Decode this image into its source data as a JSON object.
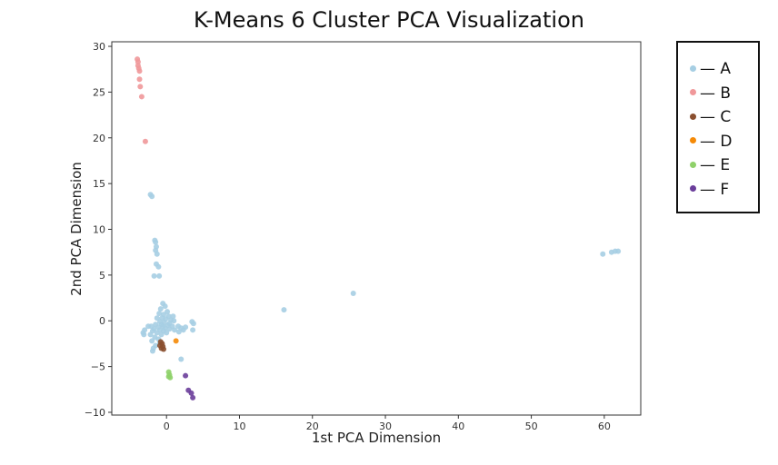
{
  "chart_data": {
    "type": "scatter",
    "title": "K-Means 6 Cluster PCA Visualization",
    "xlabel": "1st PCA Dimension",
    "ylabel": "2nd PCA Dimension",
    "xlim": [
      -7.5,
      65
    ],
    "ylim": [
      -10.3,
      30.5
    ],
    "xticks": [
      0,
      10,
      20,
      30,
      40,
      50,
      60
    ],
    "yticks": [
      -10,
      -5,
      0,
      5,
      10,
      15,
      20,
      25,
      30
    ],
    "xtick_labels": [
      "0",
      "10",
      "20",
      "30",
      "40",
      "50",
      "60"
    ],
    "ytick_labels": [
      "−10",
      "−5",
      "0",
      "5",
      "10",
      "15",
      "20",
      "25",
      "30"
    ],
    "grid": false,
    "legend_position": "outside-right",
    "series": [
      {
        "name": "— A",
        "color": "#a6cee3",
        "points": [
          [
            -2.2,
            13.8
          ],
          [
            -2.0,
            13.6
          ],
          [
            -1.6,
            8.8
          ],
          [
            -1.5,
            8.6
          ],
          [
            -1.4,
            8.1
          ],
          [
            -1.5,
            7.7
          ],
          [
            -1.3,
            7.3
          ],
          [
            -1.4,
            6.2
          ],
          [
            -1.1,
            5.9
          ],
          [
            -1.7,
            4.9
          ],
          [
            -1.0,
            4.9
          ],
          [
            -0.5,
            1.9
          ],
          [
            -0.2,
            1.6
          ],
          [
            -0.8,
            1.3
          ],
          [
            0.1,
            1.0
          ],
          [
            -1.0,
            0.8
          ],
          [
            -0.4,
            0.7
          ],
          [
            0.3,
            0.5
          ],
          [
            0.9,
            0.5
          ],
          [
            -1.3,
            0.3
          ],
          [
            -0.6,
            0.3
          ],
          [
            -0.1,
            0.2
          ],
          [
            0.6,
            0.1
          ],
          [
            1.0,
            0.0
          ],
          [
            -0.9,
            -0.1
          ],
          [
            -0.3,
            -0.2
          ],
          [
            0.4,
            -0.3
          ],
          [
            -1.5,
            -0.4
          ],
          [
            -0.7,
            -0.4
          ],
          [
            0.2,
            -0.5
          ],
          [
            -2.1,
            -0.6
          ],
          [
            -2.5,
            -0.6
          ],
          [
            -0.5,
            -0.6
          ],
          [
            0.8,
            -0.6
          ],
          [
            -1.1,
            -0.7
          ],
          [
            -0.2,
            -0.8
          ],
          [
            -1.7,
            -0.9
          ],
          [
            0.4,
            -0.9
          ],
          [
            -3.0,
            -1.0
          ],
          [
            -0.9,
            -1.0
          ],
          [
            1.1,
            -1.0
          ],
          [
            -1.9,
            -1.1
          ],
          [
            -0.4,
            -1.1
          ],
          [
            -3.2,
            -1.3
          ],
          [
            -1.3,
            -1.3
          ],
          [
            0.0,
            -1.3
          ],
          [
            -3.1,
            -1.5
          ],
          [
            -2.2,
            -1.5
          ],
          [
            -0.7,
            -1.5
          ],
          [
            -1.6,
            -1.8
          ],
          [
            -1.1,
            -2.0
          ],
          [
            -2.0,
            -2.2
          ],
          [
            -0.9,
            -2.4
          ],
          [
            -1.5,
            -2.7
          ],
          [
            -1.8,
            -3.0
          ],
          [
            -1.9,
            -3.3
          ],
          [
            1.6,
            -0.6
          ],
          [
            2.0,
            -0.8
          ],
          [
            2.6,
            -0.7
          ],
          [
            2.3,
            -1.0
          ],
          [
            1.7,
            -1.2
          ],
          [
            3.5,
            -0.1
          ],
          [
            3.7,
            -0.3
          ],
          [
            3.6,
            -1.0
          ],
          [
            2.0,
            -4.2
          ],
          [
            16.1,
            1.2
          ],
          [
            25.6,
            3.0
          ],
          [
            59.8,
            7.3
          ],
          [
            61.0,
            7.5
          ],
          [
            61.5,
            7.6
          ],
          [
            61.9,
            7.6
          ]
        ]
      },
      {
        "name": "— B",
        "color": "#f0989a",
        "points": [
          [
            -4.0,
            28.6
          ],
          [
            -3.9,
            28.3
          ],
          [
            -3.9,
            27.9
          ],
          [
            -3.8,
            27.6
          ],
          [
            -3.7,
            27.3
          ],
          [
            -3.7,
            26.4
          ],
          [
            -3.6,
            25.6
          ],
          [
            -3.4,
            24.5
          ],
          [
            -2.9,
            19.6
          ]
        ]
      },
      {
        "name": "— C",
        "color": "#8a4f2f",
        "points": [
          [
            -0.8,
            -2.3
          ],
          [
            -0.6,
            -2.5
          ],
          [
            -0.9,
            -2.7
          ],
          [
            -0.5,
            -2.8
          ],
          [
            -0.7,
            -3.0
          ],
          [
            -0.4,
            -3.1
          ]
        ]
      },
      {
        "name": "— D",
        "color": "#f58a07",
        "points": [
          [
            1.3,
            -2.2
          ]
        ]
      },
      {
        "name": "— E",
        "color": "#8fd16a",
        "points": [
          [
            0.3,
            -5.6
          ],
          [
            0.4,
            -5.9
          ],
          [
            0.3,
            -6.1
          ],
          [
            0.5,
            -6.2
          ]
        ]
      },
      {
        "name": "— F",
        "color": "#6a3d9a",
        "points": [
          [
            2.6,
            -6.0
          ],
          [
            3.0,
            -7.6
          ],
          [
            3.4,
            -7.9
          ],
          [
            3.6,
            -8.4
          ]
        ]
      }
    ]
  }
}
